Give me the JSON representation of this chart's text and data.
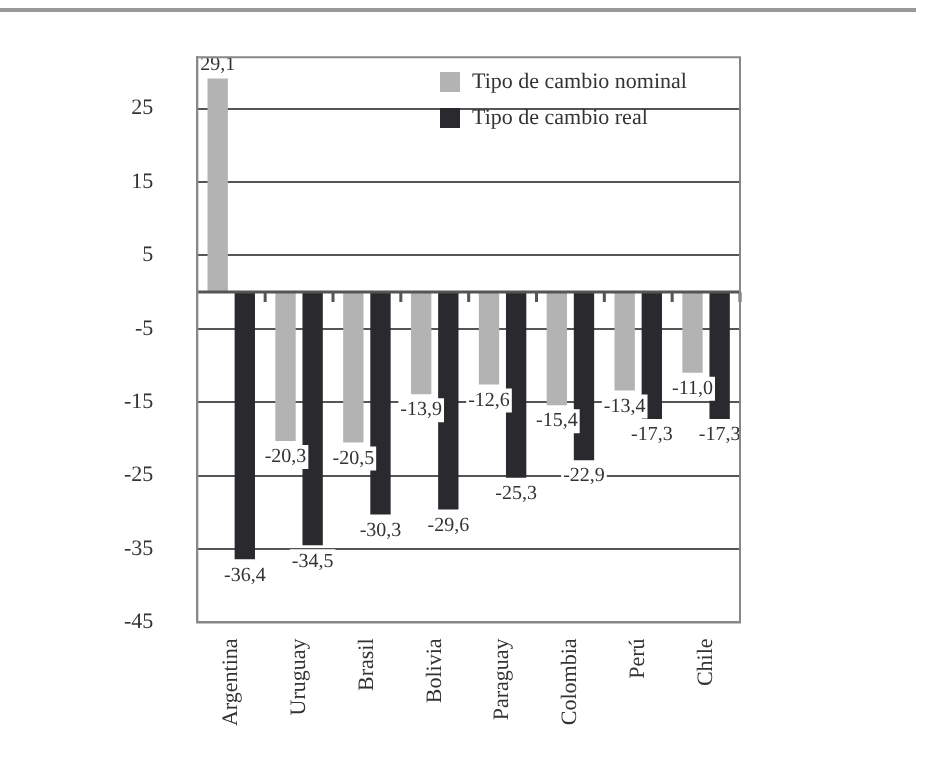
{
  "chart_data": {
    "type": "bar",
    "categories": [
      "Argentina",
      "Uruguay",
      "Brasil",
      "Bolivia",
      "Paraguay",
      "Colombia",
      "Perú",
      "Chile"
    ],
    "series": [
      {
        "name": "Tipo de cambio nominal",
        "color": "#b3b3b3",
        "values": [
          29.1,
          -20.3,
          -20.5,
          -13.9,
          -12.6,
          -15.4,
          -13.4,
          -11.0
        ],
        "value_labels": [
          "29,1",
          "-20,3",
          "-20,5",
          "-13,9",
          "-12,6",
          "-15,4",
          "-13,4",
          "-11,0"
        ]
      },
      {
        "name": "Tipo de cambio real",
        "color": "#2a2a2e",
        "values": [
          -36.4,
          -34.5,
          -30.3,
          -29.6,
          -25.3,
          -22.9,
          -17.3,
          -17.3
        ],
        "value_labels": [
          "-36,4",
          "-34,5",
          "-30,3",
          "-29,6",
          "-25,3",
          "-22,9",
          "-17,3",
          "-17,3"
        ]
      }
    ],
    "ylim": [
      -45,
      32
    ],
    "yticks": [
      25,
      15,
      5,
      -5,
      -15,
      -25,
      -35,
      -45
    ],
    "grid": "y",
    "legend": "top right"
  }
}
